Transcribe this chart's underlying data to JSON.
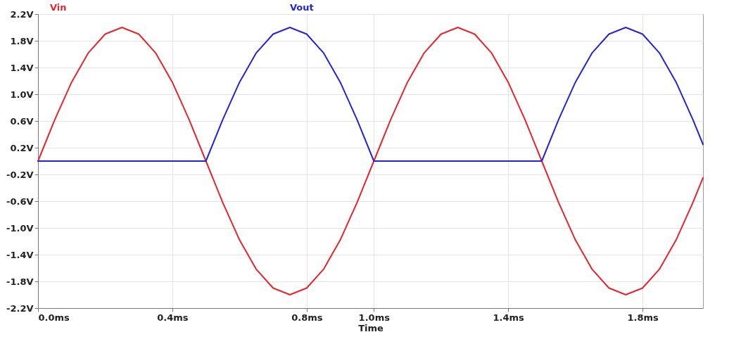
{
  "chart_data": {
    "type": "line",
    "xlabel": "Time",
    "x": [
      0,
      0.05,
      0.1,
      0.15,
      0.2,
      0.25,
      0.3,
      0.35,
      0.4,
      0.45,
      0.5,
      0.55,
      0.6,
      0.65,
      0.7,
      0.75,
      0.8,
      0.85,
      0.9,
      0.95,
      1.0,
      1.05,
      1.1,
      1.15,
      1.2,
      1.25,
      1.3,
      1.35,
      1.4,
      1.45,
      1.5,
      1.55,
      1.6,
      1.65,
      1.7,
      1.75,
      1.8,
      1.85,
      1.9,
      1.95,
      1.98
    ],
    "series": [
      {
        "name": "Vin",
        "color": "#e8232b",
        "values": [
          0,
          0.62,
          1.18,
          1.62,
          1.9,
          2.0,
          1.9,
          1.62,
          1.18,
          0.62,
          0,
          -0.62,
          -1.18,
          -1.62,
          -1.9,
          -2.0,
          -1.9,
          -1.62,
          -1.18,
          -0.62,
          0,
          0.62,
          1.18,
          1.62,
          1.9,
          2.0,
          1.9,
          1.62,
          1.18,
          0.62,
          0,
          -0.62,
          -1.18,
          -1.62,
          -1.9,
          -2.0,
          -1.9,
          -1.62,
          -1.18,
          -0.62,
          -0.25
        ]
      },
      {
        "name": "Vout",
        "color": "#2323d8",
        "values": [
          0,
          0,
          0,
          0,
          0,
          0,
          0,
          0,
          0,
          0,
          0,
          0.62,
          1.18,
          1.62,
          1.9,
          2.0,
          1.9,
          1.62,
          1.18,
          0.62,
          0,
          0,
          0,
          0,
          0,
          0,
          0,
          0,
          0,
          0,
          0,
          0.62,
          1.18,
          1.62,
          1.9,
          2.0,
          1.9,
          1.62,
          1.18,
          0.62,
          0.25
        ]
      }
    ],
    "xlim": [
      0,
      1.98
    ],
    "xticks": [
      {
        "value": 0,
        "label": "0.0ms"
      },
      {
        "value": 0.4,
        "label": "0.4ms"
      },
      {
        "value": 0.8,
        "label": "0.8ms"
      },
      {
        "value": 1.0,
        "label": "1.0ms"
      },
      {
        "value": 1.4,
        "label": "1.4ms"
      },
      {
        "value": 1.8,
        "label": "1.8ms"
      }
    ],
    "ylim": [
      -2.2,
      2.2
    ],
    "yticks": [
      {
        "value": 2.2,
        "label": "2.2V"
      },
      {
        "value": 1.8,
        "label": "1.8V"
      },
      {
        "value": 1.4,
        "label": "1.4V"
      },
      {
        "value": 1.0,
        "label": "1.0V"
      },
      {
        "value": 0.6,
        "label": "0.6V"
      },
      {
        "value": 0.2,
        "label": "0.2V"
      },
      {
        "value": -0.2,
        "label": "-0.2V"
      },
      {
        "value": -0.6,
        "label": "-0.6V"
      },
      {
        "value": -1.0,
        "label": "-1.0V"
      },
      {
        "value": -1.4,
        "label": "-1.4V"
      },
      {
        "value": -1.8,
        "label": "-1.8V"
      },
      {
        "value": -2.2,
        "label": "-2.2V"
      }
    ],
    "grid": true,
    "legend": "top",
    "marker": "none",
    "line_style": "solid"
  }
}
